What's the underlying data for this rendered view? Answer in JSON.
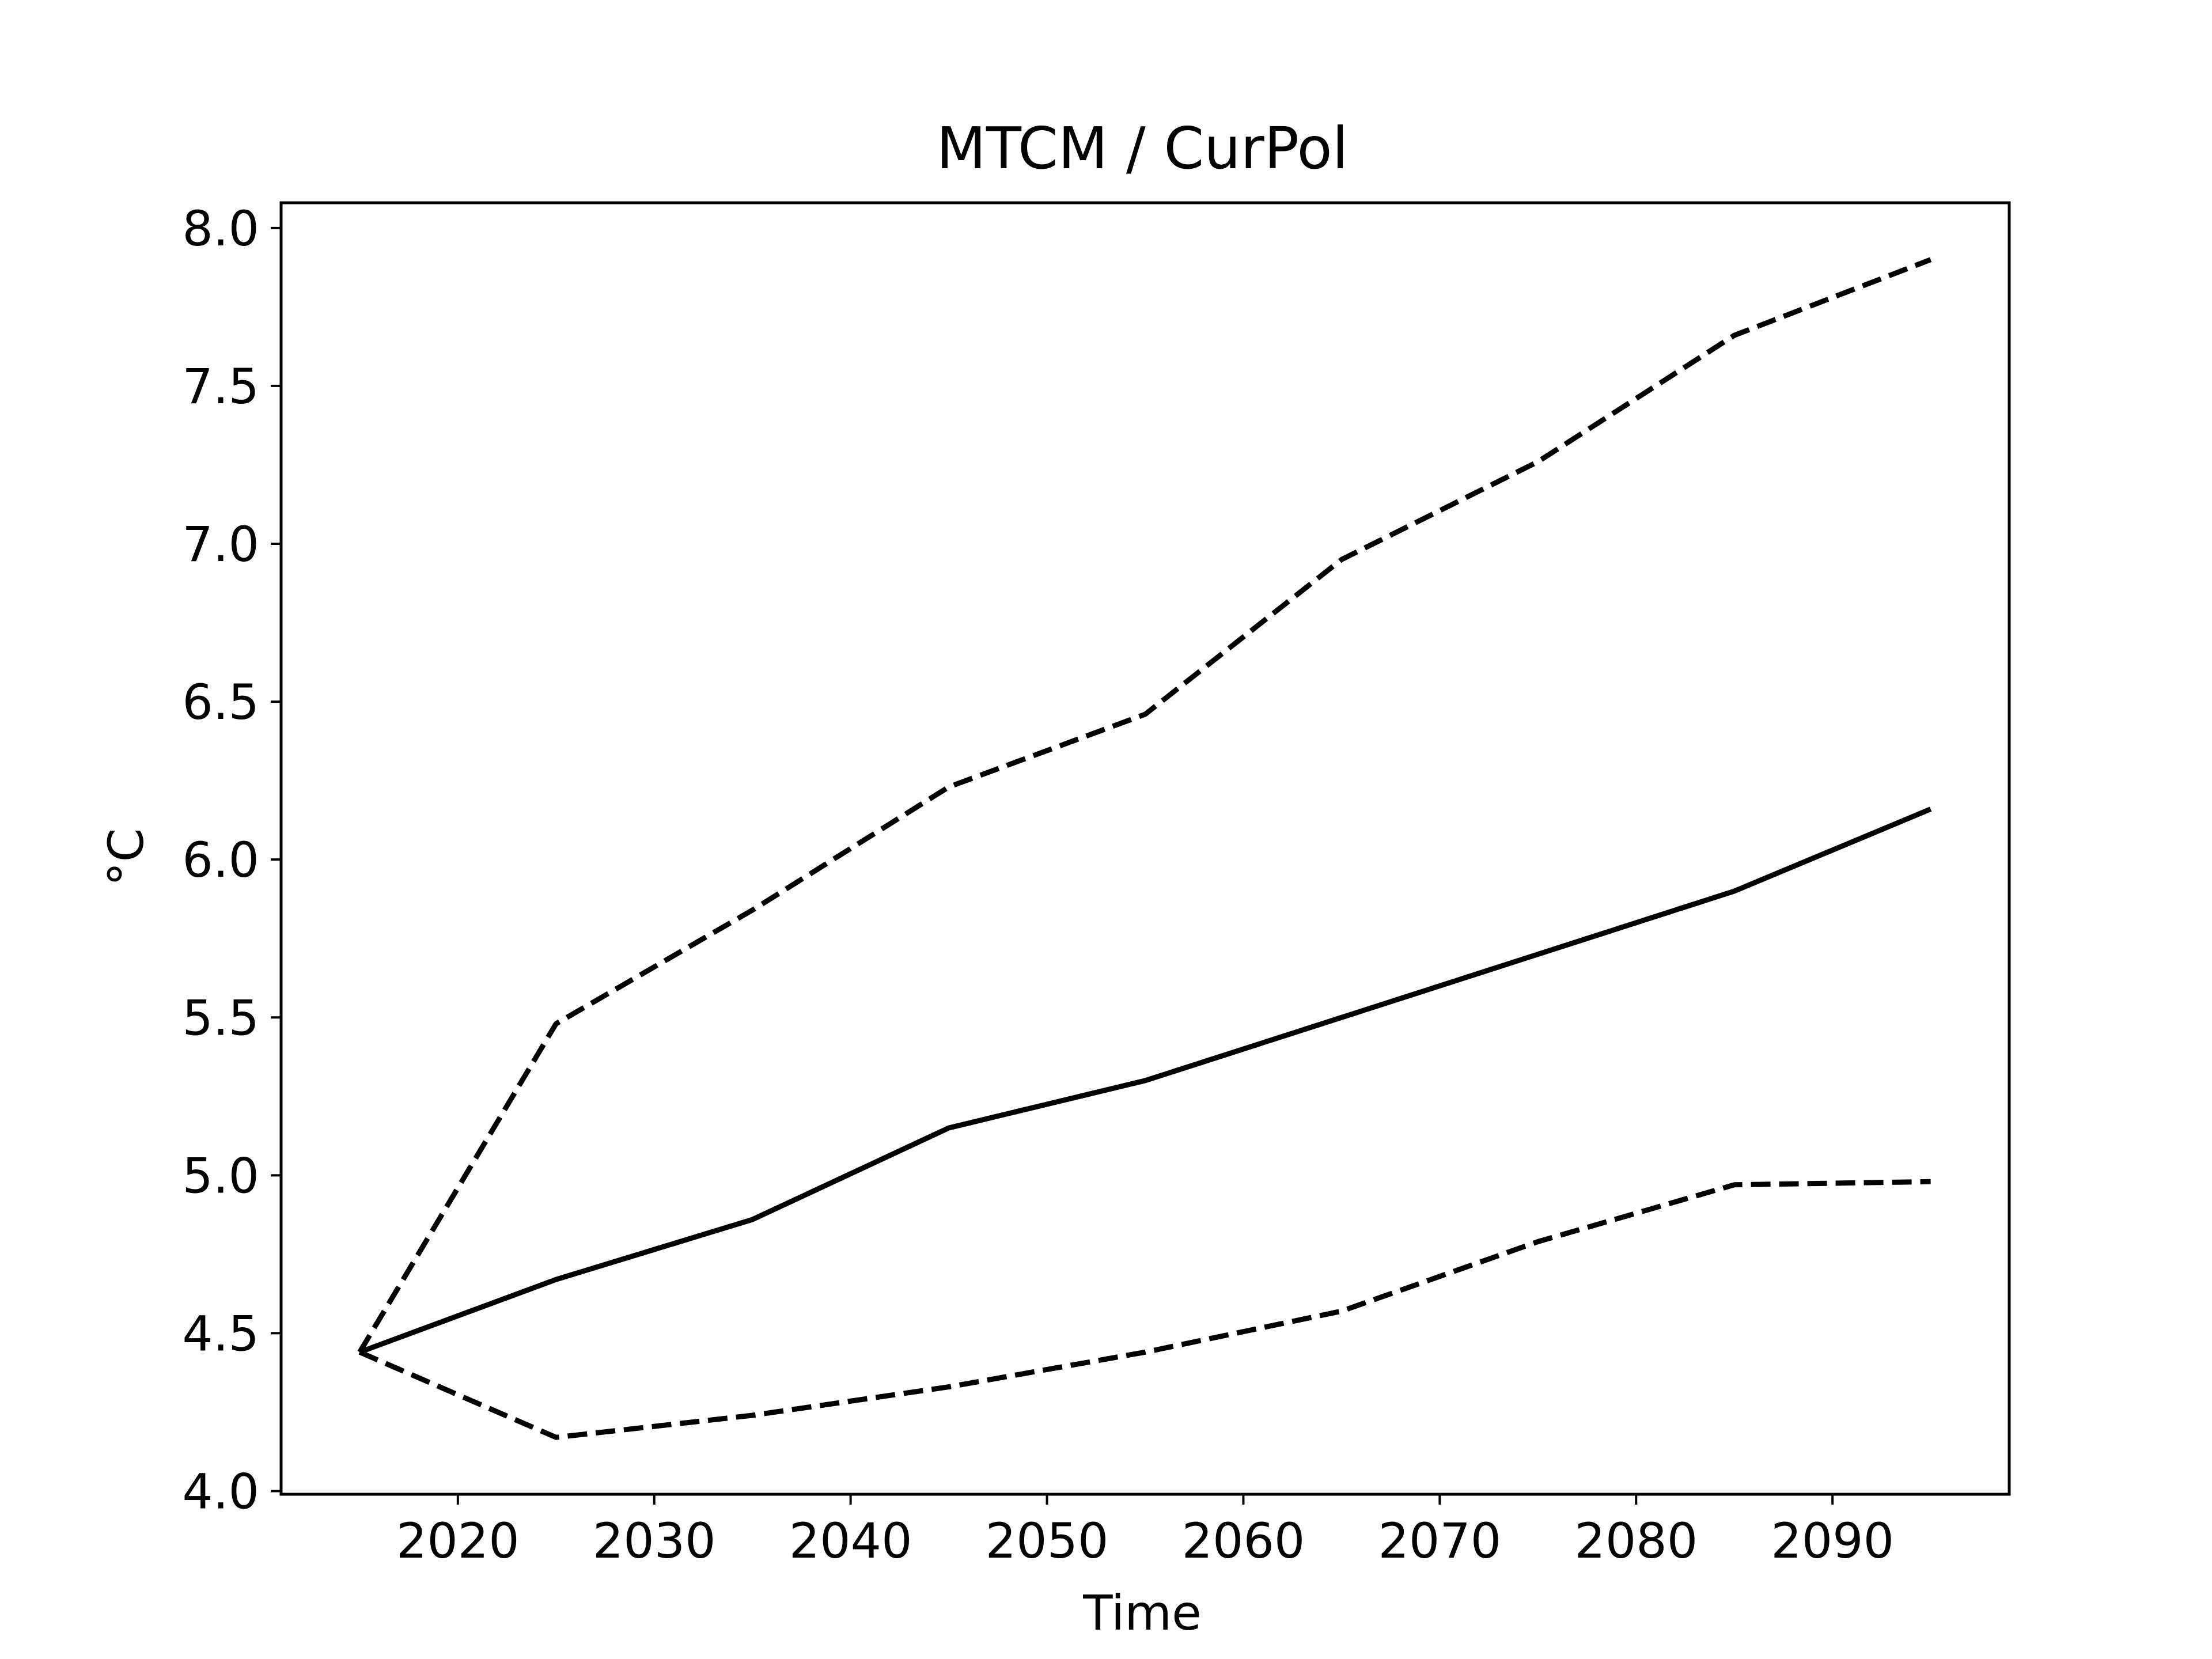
{
  "chart_data": {
    "type": "line",
    "title": "MTCM / CurPol",
    "xlabel": "Time",
    "ylabel": "°C",
    "x": [
      2015,
      2025,
      2035,
      2045,
      2055,
      2065,
      2075,
      2085,
      2095
    ],
    "series": [
      {
        "style": "solid",
        "values": [
          4.44,
          4.67,
          4.86,
          5.15,
          5.3,
          5.5,
          5.7,
          5.9,
          6.16
        ]
      },
      {
        "style": "dashed",
        "values": [
          4.44,
          5.48,
          5.84,
          6.23,
          6.46,
          6.95,
          7.26,
          7.66,
          7.9
        ]
      },
      {
        "style": "dashed",
        "values": [
          4.44,
          4.17,
          4.24,
          4.33,
          4.44,
          4.57,
          4.79,
          4.97,
          4.98
        ]
      }
    ],
    "xticks": [
      2020,
      2030,
      2040,
      2050,
      2060,
      2070,
      2080,
      2090
    ],
    "yticks": [
      4.0,
      4.5,
      5.0,
      5.5,
      6.0,
      6.5,
      7.0,
      7.5,
      8.0
    ],
    "xlim": [
      2011,
      2099
    ],
    "ylim": [
      3.99,
      8.08
    ],
    "line_color": "#000000",
    "grid": false,
    "legend": false
  }
}
